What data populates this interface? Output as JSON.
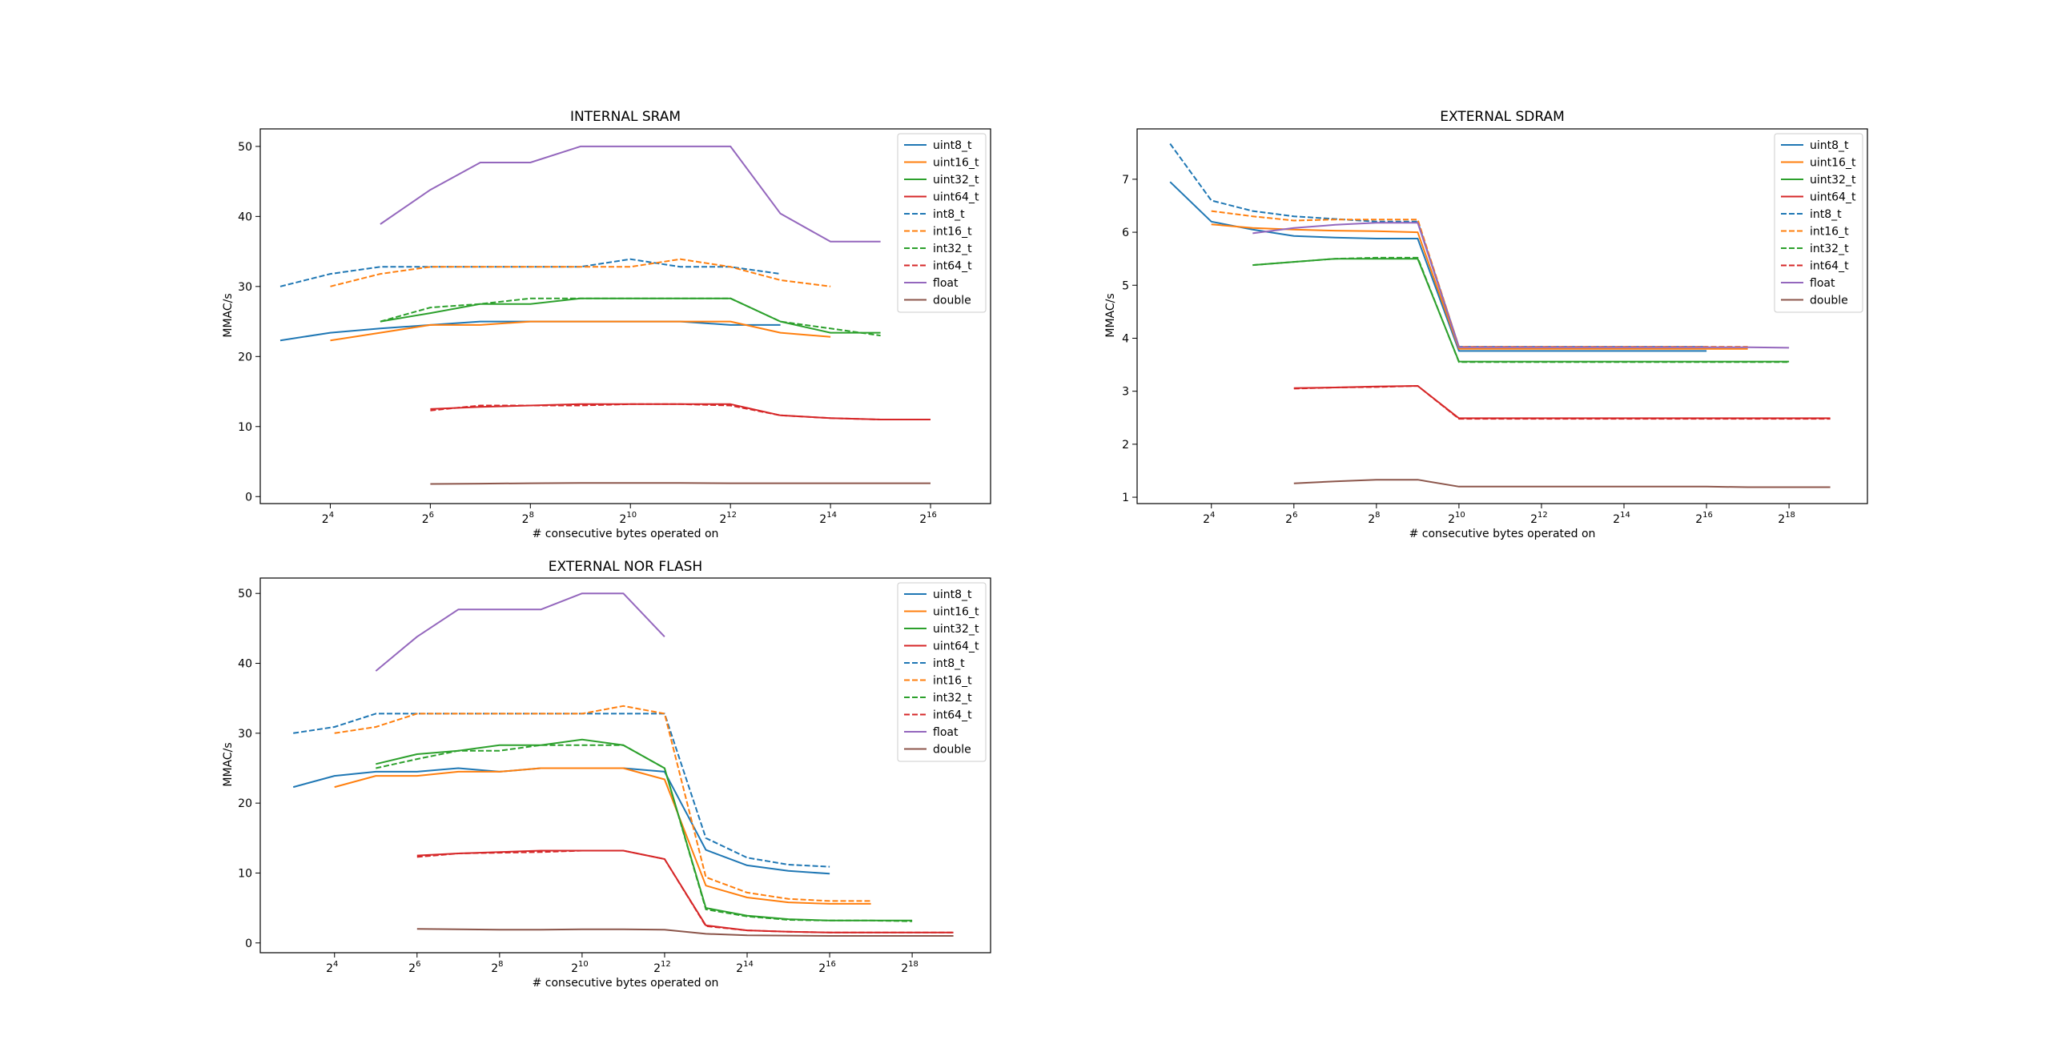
{
  "figure": {
    "background": "#ffffff"
  },
  "chart_data": [
    {
      "id": "internal-sram",
      "type": "line",
      "title": "INTERNAL SRAM",
      "xlabel": "# consecutive bytes operated on",
      "ylabel": "MMAC/s",
      "xscale": "log2",
      "xlim": [
        2.6,
        17.2
      ],
      "ylim": [
        -1,
        52.5
      ],
      "xticks": [
        4,
        6,
        8,
        10,
        12,
        14,
        16
      ],
      "yticks": [
        0,
        10,
        20,
        30,
        40,
        50
      ],
      "legend": "top-right",
      "series": [
        {
          "name": "uint8_t",
          "color": "#1f77b4",
          "dash": "solid",
          "x": [
            3,
            4,
            5,
            6,
            7,
            8,
            9,
            10,
            11,
            12,
            13
          ],
          "y": [
            22.3,
            23.4,
            24.0,
            24.5,
            25.0,
            25.0,
            25.0,
            25.0,
            25.0,
            24.5,
            24.5
          ]
        },
        {
          "name": "uint16_t",
          "color": "#ff7f0e",
          "dash": "solid",
          "x": [
            4,
            5,
            6,
            7,
            8,
            9,
            10,
            11,
            12,
            13,
            14
          ],
          "y": [
            22.3,
            23.4,
            24.5,
            24.5,
            25.0,
            25.0,
            25.0,
            25.0,
            25.0,
            23.4,
            22.8
          ]
        },
        {
          "name": "uint32_t",
          "color": "#2ca02c",
          "dash": "solid",
          "x": [
            5,
            6,
            7,
            8,
            9,
            10,
            11,
            12,
            13,
            14,
            15
          ],
          "y": [
            25.0,
            26.2,
            27.5,
            27.5,
            28.3,
            28.3,
            28.3,
            28.3,
            25.0,
            23.4,
            23.4
          ]
        },
        {
          "name": "uint64_t",
          "color": "#d62728",
          "dash": "solid",
          "x": [
            6,
            7,
            8,
            9,
            10,
            11,
            12,
            13,
            14,
            15,
            16
          ],
          "y": [
            12.5,
            12.8,
            13.0,
            13.2,
            13.2,
            13.2,
            13.2,
            11.6,
            11.2,
            11.0,
            11.0
          ]
        },
        {
          "name": "int8_t",
          "color": "#1f77b4",
          "dash": "dashed",
          "x": [
            3,
            4,
            5,
            6,
            7,
            8,
            9,
            10,
            11,
            12,
            13
          ],
          "y": [
            30.0,
            31.8,
            32.8,
            32.8,
            32.8,
            32.8,
            32.8,
            33.9,
            32.8,
            32.8,
            31.8
          ]
        },
        {
          "name": "int16_t",
          "color": "#ff7f0e",
          "dash": "dashed",
          "x": [
            4,
            5,
            6,
            7,
            8,
            9,
            10,
            11,
            12,
            13,
            14
          ],
          "y": [
            30.0,
            31.8,
            32.8,
            32.8,
            32.8,
            32.8,
            32.8,
            33.9,
            32.8,
            30.9,
            30.0
          ]
        },
        {
          "name": "int32_t",
          "color": "#2ca02c",
          "dash": "dashed",
          "x": [
            5,
            6,
            7,
            8,
            9,
            10,
            11,
            12,
            13,
            14,
            15
          ],
          "y": [
            25.0,
            27.0,
            27.5,
            28.3,
            28.3,
            28.3,
            28.3,
            28.3,
            25.0,
            24.0,
            23.0
          ]
        },
        {
          "name": "int64_t",
          "color": "#d62728",
          "dash": "dashed",
          "x": [
            6,
            7,
            8,
            9,
            10,
            11,
            12,
            13,
            14,
            15,
            16
          ],
          "y": [
            12.3,
            13.0,
            13.0,
            13.0,
            13.2,
            13.2,
            13.0,
            11.6,
            11.2,
            11.0,
            11.0
          ]
        },
        {
          "name": "float",
          "color": "#9467bd",
          "dash": "solid",
          "x": [
            5,
            6,
            7,
            8,
            9,
            10,
            11,
            12,
            13,
            14,
            15
          ],
          "y": [
            38.9,
            43.8,
            47.7,
            47.7,
            50.0,
            50.0,
            50.0,
            50.0,
            40.4,
            36.4,
            36.4
          ]
        },
        {
          "name": "double",
          "color": "#8c564b",
          "dash": "solid",
          "x": [
            6,
            7,
            8,
            9,
            10,
            11,
            12,
            13,
            14,
            15,
            16
          ],
          "y": [
            1.8,
            1.85,
            1.9,
            1.95,
            1.95,
            1.95,
            1.9,
            1.9,
            1.9,
            1.9,
            1.9
          ]
        }
      ]
    },
    {
      "id": "external-sdram",
      "type": "line",
      "title": "EXTERNAL SDRAM",
      "xlabel": "# consecutive bytes operated on",
      "ylabel": "MMAC/s",
      "xscale": "log2",
      "xlim": [
        2.2,
        19.9
      ],
      "ylim": [
        0.88,
        7.95
      ],
      "xticks": [
        4,
        6,
        8,
        10,
        12,
        14,
        16,
        18
      ],
      "yticks": [
        1,
        2,
        3,
        4,
        5,
        6,
        7
      ],
      "legend": "top-right",
      "series": [
        {
          "name": "uint8_t",
          "color": "#1f77b4",
          "dash": "solid",
          "x": [
            3,
            4,
            5,
            6,
            7,
            8,
            9,
            10,
            11,
            12,
            13,
            14,
            15,
            16
          ],
          "y": [
            6.95,
            6.2,
            6.05,
            5.93,
            5.9,
            5.88,
            5.88,
            3.76,
            3.76,
            3.76,
            3.76,
            3.76,
            3.76,
            3.76
          ]
        },
        {
          "name": "uint16_t",
          "color": "#ff7f0e",
          "dash": "solid",
          "x": [
            4,
            5,
            6,
            7,
            8,
            9,
            10,
            11,
            12,
            13,
            14,
            15,
            16,
            17
          ],
          "y": [
            6.15,
            6.08,
            6.05,
            6.03,
            6.02,
            6.0,
            3.8,
            3.8,
            3.8,
            3.8,
            3.8,
            3.8,
            3.8,
            3.8
          ]
        },
        {
          "name": "uint32_t",
          "color": "#2ca02c",
          "dash": "solid",
          "x": [
            5,
            6,
            7,
            8,
            9,
            10,
            11,
            12,
            13,
            14,
            15,
            16,
            17,
            18
          ],
          "y": [
            5.38,
            5.44,
            5.5,
            5.5,
            5.5,
            3.56,
            3.56,
            3.56,
            3.56,
            3.56,
            3.56,
            3.56,
            3.56,
            3.56
          ]
        },
        {
          "name": "uint64_t",
          "color": "#d62728",
          "dash": "solid",
          "x": [
            6,
            7,
            8,
            9,
            10,
            11,
            12,
            13,
            14,
            15,
            16,
            17,
            18,
            19
          ],
          "y": [
            3.06,
            3.07,
            3.09,
            3.1,
            2.49,
            2.49,
            2.49,
            2.49,
            2.49,
            2.49,
            2.49,
            2.49,
            2.49,
            2.49
          ]
        },
        {
          "name": "int8_t",
          "color": "#1f77b4",
          "dash": "dashed",
          "x": [
            3,
            4,
            5,
            6,
            7,
            8,
            9,
            10,
            11,
            12,
            13,
            14,
            15,
            16
          ],
          "y": [
            7.67,
            6.6,
            6.4,
            6.3,
            6.25,
            6.2,
            6.2,
            3.84,
            3.84,
            3.84,
            3.84,
            3.84,
            3.84,
            3.84
          ]
        },
        {
          "name": "int16_t",
          "color": "#ff7f0e",
          "dash": "dashed",
          "x": [
            4,
            5,
            6,
            7,
            8,
            9,
            10,
            11,
            12,
            13,
            14,
            15,
            16,
            17
          ],
          "y": [
            6.4,
            6.3,
            6.22,
            6.24,
            6.24,
            6.24,
            3.84,
            3.84,
            3.84,
            3.84,
            3.84,
            3.84,
            3.84,
            3.84
          ]
        },
        {
          "name": "int32_t",
          "color": "#2ca02c",
          "dash": "dashed",
          "x": [
            5,
            6,
            7,
            8,
            9,
            10,
            11,
            12,
            13,
            14,
            15,
            16,
            17,
            18
          ],
          "y": [
            5.38,
            5.44,
            5.5,
            5.52,
            5.52,
            3.55,
            3.55,
            3.55,
            3.55,
            3.55,
            3.55,
            3.55,
            3.55,
            3.55
          ]
        },
        {
          "name": "int64_t",
          "color": "#d62728",
          "dash": "dashed",
          "x": [
            6,
            7,
            8,
            9,
            10,
            11,
            12,
            13,
            14,
            15,
            16,
            17,
            18,
            19
          ],
          "y": [
            3.05,
            3.07,
            3.08,
            3.1,
            2.48,
            2.48,
            2.48,
            2.48,
            2.48,
            2.48,
            2.48,
            2.48,
            2.48,
            2.48
          ]
        },
        {
          "name": "float",
          "color": "#9467bd",
          "dash": "solid",
          "x": [
            5,
            6,
            7,
            8,
            9,
            10,
            11,
            12,
            13,
            14,
            15,
            16,
            17,
            18
          ],
          "y": [
            5.98,
            6.08,
            6.14,
            6.18,
            6.18,
            3.83,
            3.83,
            3.83,
            3.83,
            3.83,
            3.83,
            3.83,
            3.83,
            3.82
          ]
        },
        {
          "name": "double",
          "color": "#8c564b",
          "dash": "solid",
          "x": [
            6,
            7,
            8,
            9,
            10,
            11,
            12,
            13,
            14,
            15,
            16,
            17,
            18,
            19
          ],
          "y": [
            1.26,
            1.3,
            1.33,
            1.33,
            1.2,
            1.2,
            1.2,
            1.2,
            1.2,
            1.2,
            1.2,
            1.19,
            1.19,
            1.19
          ]
        }
      ]
    },
    {
      "id": "external-nor-flash",
      "type": "line",
      "title": "EXTERNAL NOR FLASH",
      "xlabel": "# consecutive bytes operated on",
      "ylabel": "MMAC/s",
      "xscale": "log2",
      "xlim": [
        2.2,
        19.9
      ],
      "ylim": [
        -1.4,
        52.2
      ],
      "xticks": [
        4,
        6,
        8,
        10,
        12,
        14,
        16,
        18
      ],
      "yticks": [
        0,
        10,
        20,
        30,
        40,
        50
      ],
      "legend": "top-right",
      "series": [
        {
          "name": "uint8_t",
          "color": "#1f77b4",
          "dash": "solid",
          "x": [
            3,
            4,
            5,
            6,
            7,
            8,
            9,
            10,
            11,
            12,
            13,
            14,
            15,
            16
          ],
          "y": [
            22.3,
            23.9,
            24.5,
            24.5,
            25.0,
            24.5,
            25.0,
            25.0,
            25.0,
            24.5,
            13.3,
            11.1,
            10.3,
            9.9
          ]
        },
        {
          "name": "uint16_t",
          "color": "#ff7f0e",
          "dash": "solid",
          "x": [
            4,
            5,
            6,
            7,
            8,
            9,
            10,
            11,
            12,
            13,
            14,
            15,
            16,
            17
          ],
          "y": [
            22.3,
            23.9,
            23.9,
            24.5,
            24.5,
            25.0,
            25.0,
            25.0,
            23.4,
            8.2,
            6.5,
            5.8,
            5.6,
            5.6
          ]
        },
        {
          "name": "uint32_t",
          "color": "#2ca02c",
          "dash": "solid",
          "x": [
            5,
            6,
            7,
            8,
            9,
            10,
            11,
            12,
            13,
            14,
            15,
            16,
            17,
            18
          ],
          "y": [
            25.6,
            27.0,
            27.5,
            28.3,
            28.3,
            29.1,
            28.3,
            25.0,
            5.0,
            3.9,
            3.4,
            3.2,
            3.2,
            3.2
          ]
        },
        {
          "name": "uint64_t",
          "color": "#d62728",
          "dash": "solid",
          "x": [
            6,
            7,
            8,
            9,
            10,
            11,
            12,
            13,
            14,
            15,
            16,
            17,
            18,
            19
          ],
          "y": [
            12.5,
            12.8,
            13.0,
            13.2,
            13.2,
            13.2,
            12.0,
            2.5,
            1.8,
            1.6,
            1.5,
            1.5,
            1.5,
            1.5
          ]
        },
        {
          "name": "int8_t",
          "color": "#1f77b4",
          "dash": "dashed",
          "x": [
            3,
            4,
            5,
            6,
            7,
            8,
            9,
            10,
            11,
            12,
            13,
            14,
            15,
            16
          ],
          "y": [
            30.0,
            30.9,
            32.8,
            32.8,
            32.8,
            32.8,
            32.8,
            32.8,
            32.8,
            32.8,
            15.0,
            12.2,
            11.2,
            10.9
          ]
        },
        {
          "name": "int16_t",
          "color": "#ff7f0e",
          "dash": "dashed",
          "x": [
            4,
            5,
            6,
            7,
            8,
            9,
            10,
            11,
            12,
            13,
            14,
            15,
            16,
            17
          ],
          "y": [
            30.0,
            30.9,
            32.8,
            32.8,
            32.8,
            32.8,
            32.8,
            33.9,
            32.8,
            9.4,
            7.2,
            6.3,
            6.0,
            6.0
          ]
        },
        {
          "name": "int32_t",
          "color": "#2ca02c",
          "dash": "dashed",
          "x": [
            5,
            6,
            7,
            8,
            9,
            10,
            11,
            12,
            13,
            14,
            15,
            16,
            17,
            18
          ],
          "y": [
            25.0,
            26.3,
            27.5,
            27.5,
            28.3,
            28.3,
            28.3,
            25.0,
            4.8,
            3.8,
            3.3,
            3.2,
            3.2,
            3.1
          ]
        },
        {
          "name": "int64_t",
          "color": "#d62728",
          "dash": "dashed",
          "x": [
            6,
            7,
            8,
            9,
            10,
            11,
            12,
            13,
            14,
            15,
            16,
            17,
            18,
            19
          ],
          "y": [
            12.3,
            12.8,
            12.9,
            13.0,
            13.2,
            13.2,
            12.0,
            2.4,
            1.8,
            1.6,
            1.5,
            1.5,
            1.5,
            1.5
          ]
        },
        {
          "name": "float",
          "color": "#9467bd",
          "dash": "solid",
          "x": [
            5,
            6,
            7,
            8,
            9,
            10,
            11,
            12
          ],
          "y": [
            38.9,
            43.8,
            47.7,
            47.7,
            47.7,
            50.0,
            50.0,
            43.8
          ]
        },
        {
          "name": "double",
          "color": "#8c564b",
          "dash": "solid",
          "x": [
            6,
            7,
            8,
            9,
            10,
            11,
            12,
            13,
            14,
            15,
            16,
            17,
            18,
            19
          ],
          "y": [
            2.0,
            1.95,
            1.9,
            1.9,
            1.95,
            1.95,
            1.9,
            1.3,
            1.1,
            1.05,
            1.0,
            1.0,
            1.0,
            1.0
          ]
        }
      ]
    }
  ]
}
